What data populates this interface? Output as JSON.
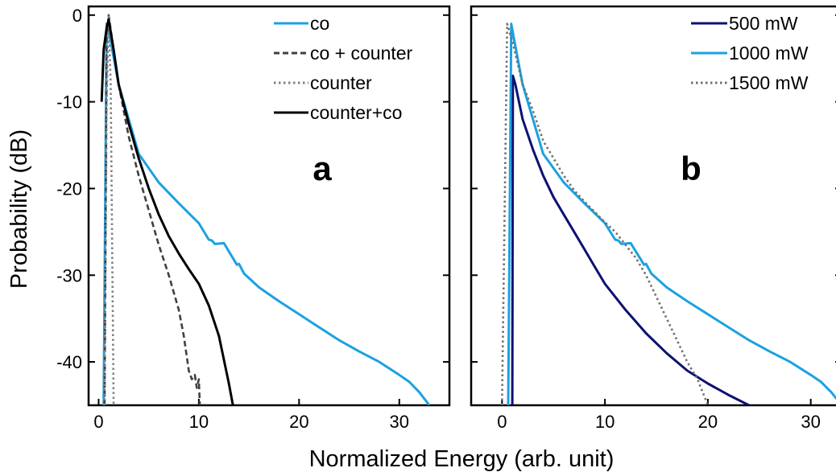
{
  "figure": {
    "ylabel": "Probability (dB)",
    "xlabel": "Normalized Energy (arb. unit)"
  },
  "chart_data": [
    {
      "type": "line",
      "panel_label": "a",
      "xlim": [
        -1,
        35
      ],
      "ylim": [
        -45,
        1
      ],
      "xticks": [
        0,
        10,
        20,
        30
      ],
      "yticks": [
        0,
        -10,
        -20,
        -30,
        -40
      ],
      "ylabel": "Probability (dB)",
      "legend_position": "top-right",
      "series": [
        {
          "name": "co",
          "color": "#1ba1e2",
          "style": "solid",
          "x": [
            0.5,
            0.8,
            1.2,
            2,
            3,
            4,
            6,
            8,
            10,
            11,
            11.3,
            11.6,
            12.5,
            13.8,
            14,
            14.5,
            16,
            18,
            20,
            22,
            24,
            26,
            28,
            30,
            31,
            32,
            33
          ],
          "y": [
            -45,
            -1,
            -3,
            -8,
            -12,
            -16,
            -19.3,
            -21.7,
            -24,
            -25.9,
            -26,
            -26.4,
            -26.3,
            -28.8,
            -28.7,
            -29.8,
            -31.4,
            -33,
            -34.5,
            -36,
            -37.5,
            -38.8,
            -40,
            -41.5,
            -42.3,
            -43.5,
            -45
          ]
        },
        {
          "name": "co + counter",
          "color": "#404040",
          "style": "dashed",
          "x": [
            0.6,
            0.8,
            1,
            2,
            3,
            4,
            5,
            6,
            7,
            8,
            8.5,
            9,
            9.3,
            9.6,
            9.8,
            10,
            10.1
          ],
          "y": [
            -45,
            -3,
            0,
            -8,
            -14,
            -18.5,
            -22.5,
            -26.5,
            -30,
            -34,
            -37,
            -41,
            -42,
            -41.5,
            -43,
            -42,
            -45
          ]
        },
        {
          "name": "counter",
          "color": "#808080",
          "style": "dotted",
          "x": [
            0.6,
            0.8,
            1,
            1.2,
            1.5
          ],
          "y": [
            -45,
            -10,
            0,
            -8,
            -45
          ]
        },
        {
          "name": "counter+co",
          "color": "#000000",
          "style": "solid",
          "x": [
            0.3,
            0.5,
            0.8,
            1,
            1.5,
            2,
            3,
            4,
            5,
            6,
            7,
            8,
            9,
            10,
            11,
            12,
            13,
            13.4
          ],
          "y": [
            -10,
            -4,
            -1.5,
            -0.5,
            -4,
            -8,
            -12.5,
            -16.5,
            -20,
            -23,
            -25.5,
            -27.5,
            -29.3,
            -31,
            -33.5,
            -37,
            -42.5,
            -45
          ]
        }
      ]
    },
    {
      "type": "line",
      "panel_label": "b",
      "xlim": [
        -3,
        33
      ],
      "ylim": [
        -45,
        1
      ],
      "xticks": [
        0,
        10,
        20,
        30
      ],
      "yticks": [
        0,
        -10,
        -20,
        -30,
        -40
      ],
      "legend_position": "top-right",
      "series": [
        {
          "name": "500 mW",
          "color": "#0d1170",
          "style": "solid",
          "x": [
            1,
            1.05,
            1.3,
            2,
            3,
            4,
            5,
            6,
            7,
            8,
            9,
            10,
            12,
            14,
            16,
            18,
            20,
            22,
            24
          ],
          "y": [
            -45,
            -7,
            -8,
            -12,
            -15.5,
            -18.5,
            -21,
            -23,
            -25,
            -27,
            -29,
            -31,
            -34,
            -36.7,
            -39,
            -41,
            -42.5,
            -43.8,
            -45
          ]
        },
        {
          "name": "1000 mW",
          "color": "#1ba1e2",
          "style": "solid",
          "x": [
            0.6,
            0.9,
            1.2,
            2,
            3,
            4,
            6,
            8,
            10,
            11,
            11.3,
            11.6,
            12.5,
            13.8,
            14,
            14.5,
            16,
            18,
            20,
            22,
            24,
            26,
            28,
            30,
            31,
            32,
            33
          ],
          "y": [
            -45,
            -1,
            -3,
            -8,
            -12,
            -16,
            -19.3,
            -21.7,
            -24,
            -25.9,
            -26,
            -26.4,
            -26.3,
            -28.8,
            -28.7,
            -29.8,
            -31.4,
            -33,
            -34.5,
            -36,
            -37.5,
            -38.8,
            -40,
            -41.5,
            -42.3,
            -43.5,
            -45
          ]
        },
        {
          "name": "1500 mW",
          "color": "#707070",
          "style": "dotted",
          "x": [
            0,
            0.5,
            1,
            2,
            3,
            4,
            5,
            6,
            7,
            8,
            9,
            10,
            11,
            12,
            13,
            14,
            15,
            16,
            17,
            18,
            19,
            20
          ],
          "y": [
            -45,
            -1,
            -3,
            -8,
            -11,
            -14.5,
            -16.5,
            -18.5,
            -20.2,
            -21.5,
            -22.7,
            -23.9,
            -25,
            -26.5,
            -28,
            -30,
            -32.5,
            -35,
            -37.5,
            -40,
            -42,
            -45
          ]
        }
      ]
    }
  ]
}
